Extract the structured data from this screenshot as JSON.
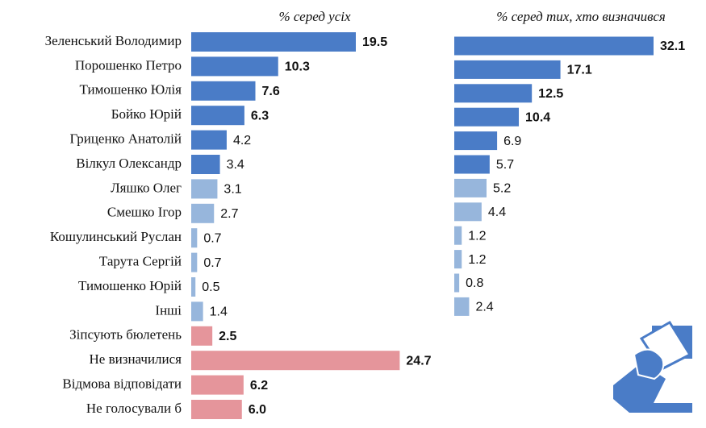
{
  "chart_data": [
    {
      "type": "bar",
      "title": "% серед усіх",
      "categories": [
        "Зеленський Володимир",
        "Порошенко Петро",
        "Тимошенко Юлія",
        "Бойко Юрій",
        "Гриценко Анатолій",
        "Вілкул Олександр",
        "Ляшко Олег",
        "Смешко Ігор",
        "Кошулинський Руслан",
        "Тарута Сергій",
        "Тимошенко Юрій",
        "Інші",
        "Зіпсують бюлетень",
        "Не визначилися",
        "Відмова відповідати",
        "Не голосували б"
      ],
      "values": [
        19.5,
        10.3,
        7.6,
        6.3,
        4.2,
        3.4,
        3.1,
        2.7,
        0.7,
        0.7,
        0.5,
        1.4,
        2.5,
        24.7,
        6.2,
        6.0
      ],
      "value_labels": [
        "19.5",
        "10.3",
        "7.6",
        "6.3",
        "4.2",
        "3.4",
        "3.1",
        "2.7",
        "0.7",
        "0.7",
        "0.5",
        "1.4",
        "2.5",
        "24.7",
        "6.2",
        "6.0"
      ],
      "colors": [
        "#4a7cc7",
        "#4a7cc7",
        "#4a7cc7",
        "#4a7cc7",
        "#4a7cc7",
        "#4a7cc7",
        "#97b6dc",
        "#97b6dc",
        "#97b6dc",
        "#97b6dc",
        "#97b6dc",
        "#97b6dc",
        "#e5959b",
        "#e5959b",
        "#e5959b",
        "#e5959b"
      ]
    },
    {
      "type": "bar",
      "title": "% серед тих, хто визначився",
      "values": [
        32.1,
        17.1,
        12.5,
        10.4,
        6.9,
        5.7,
        5.2,
        4.4,
        1.2,
        1.2,
        0.8,
        2.4
      ],
      "colors": [
        "#4a7cc7",
        "#4a7cc7",
        "#4a7cc7",
        "#4a7cc7",
        "#4a7cc7",
        "#4a7cc7",
        "#97b6dc",
        "#97b6dc",
        "#97b6dc",
        "#97b6dc",
        "#97b6dc",
        "#97b6dc"
      ]
    }
  ]
}
